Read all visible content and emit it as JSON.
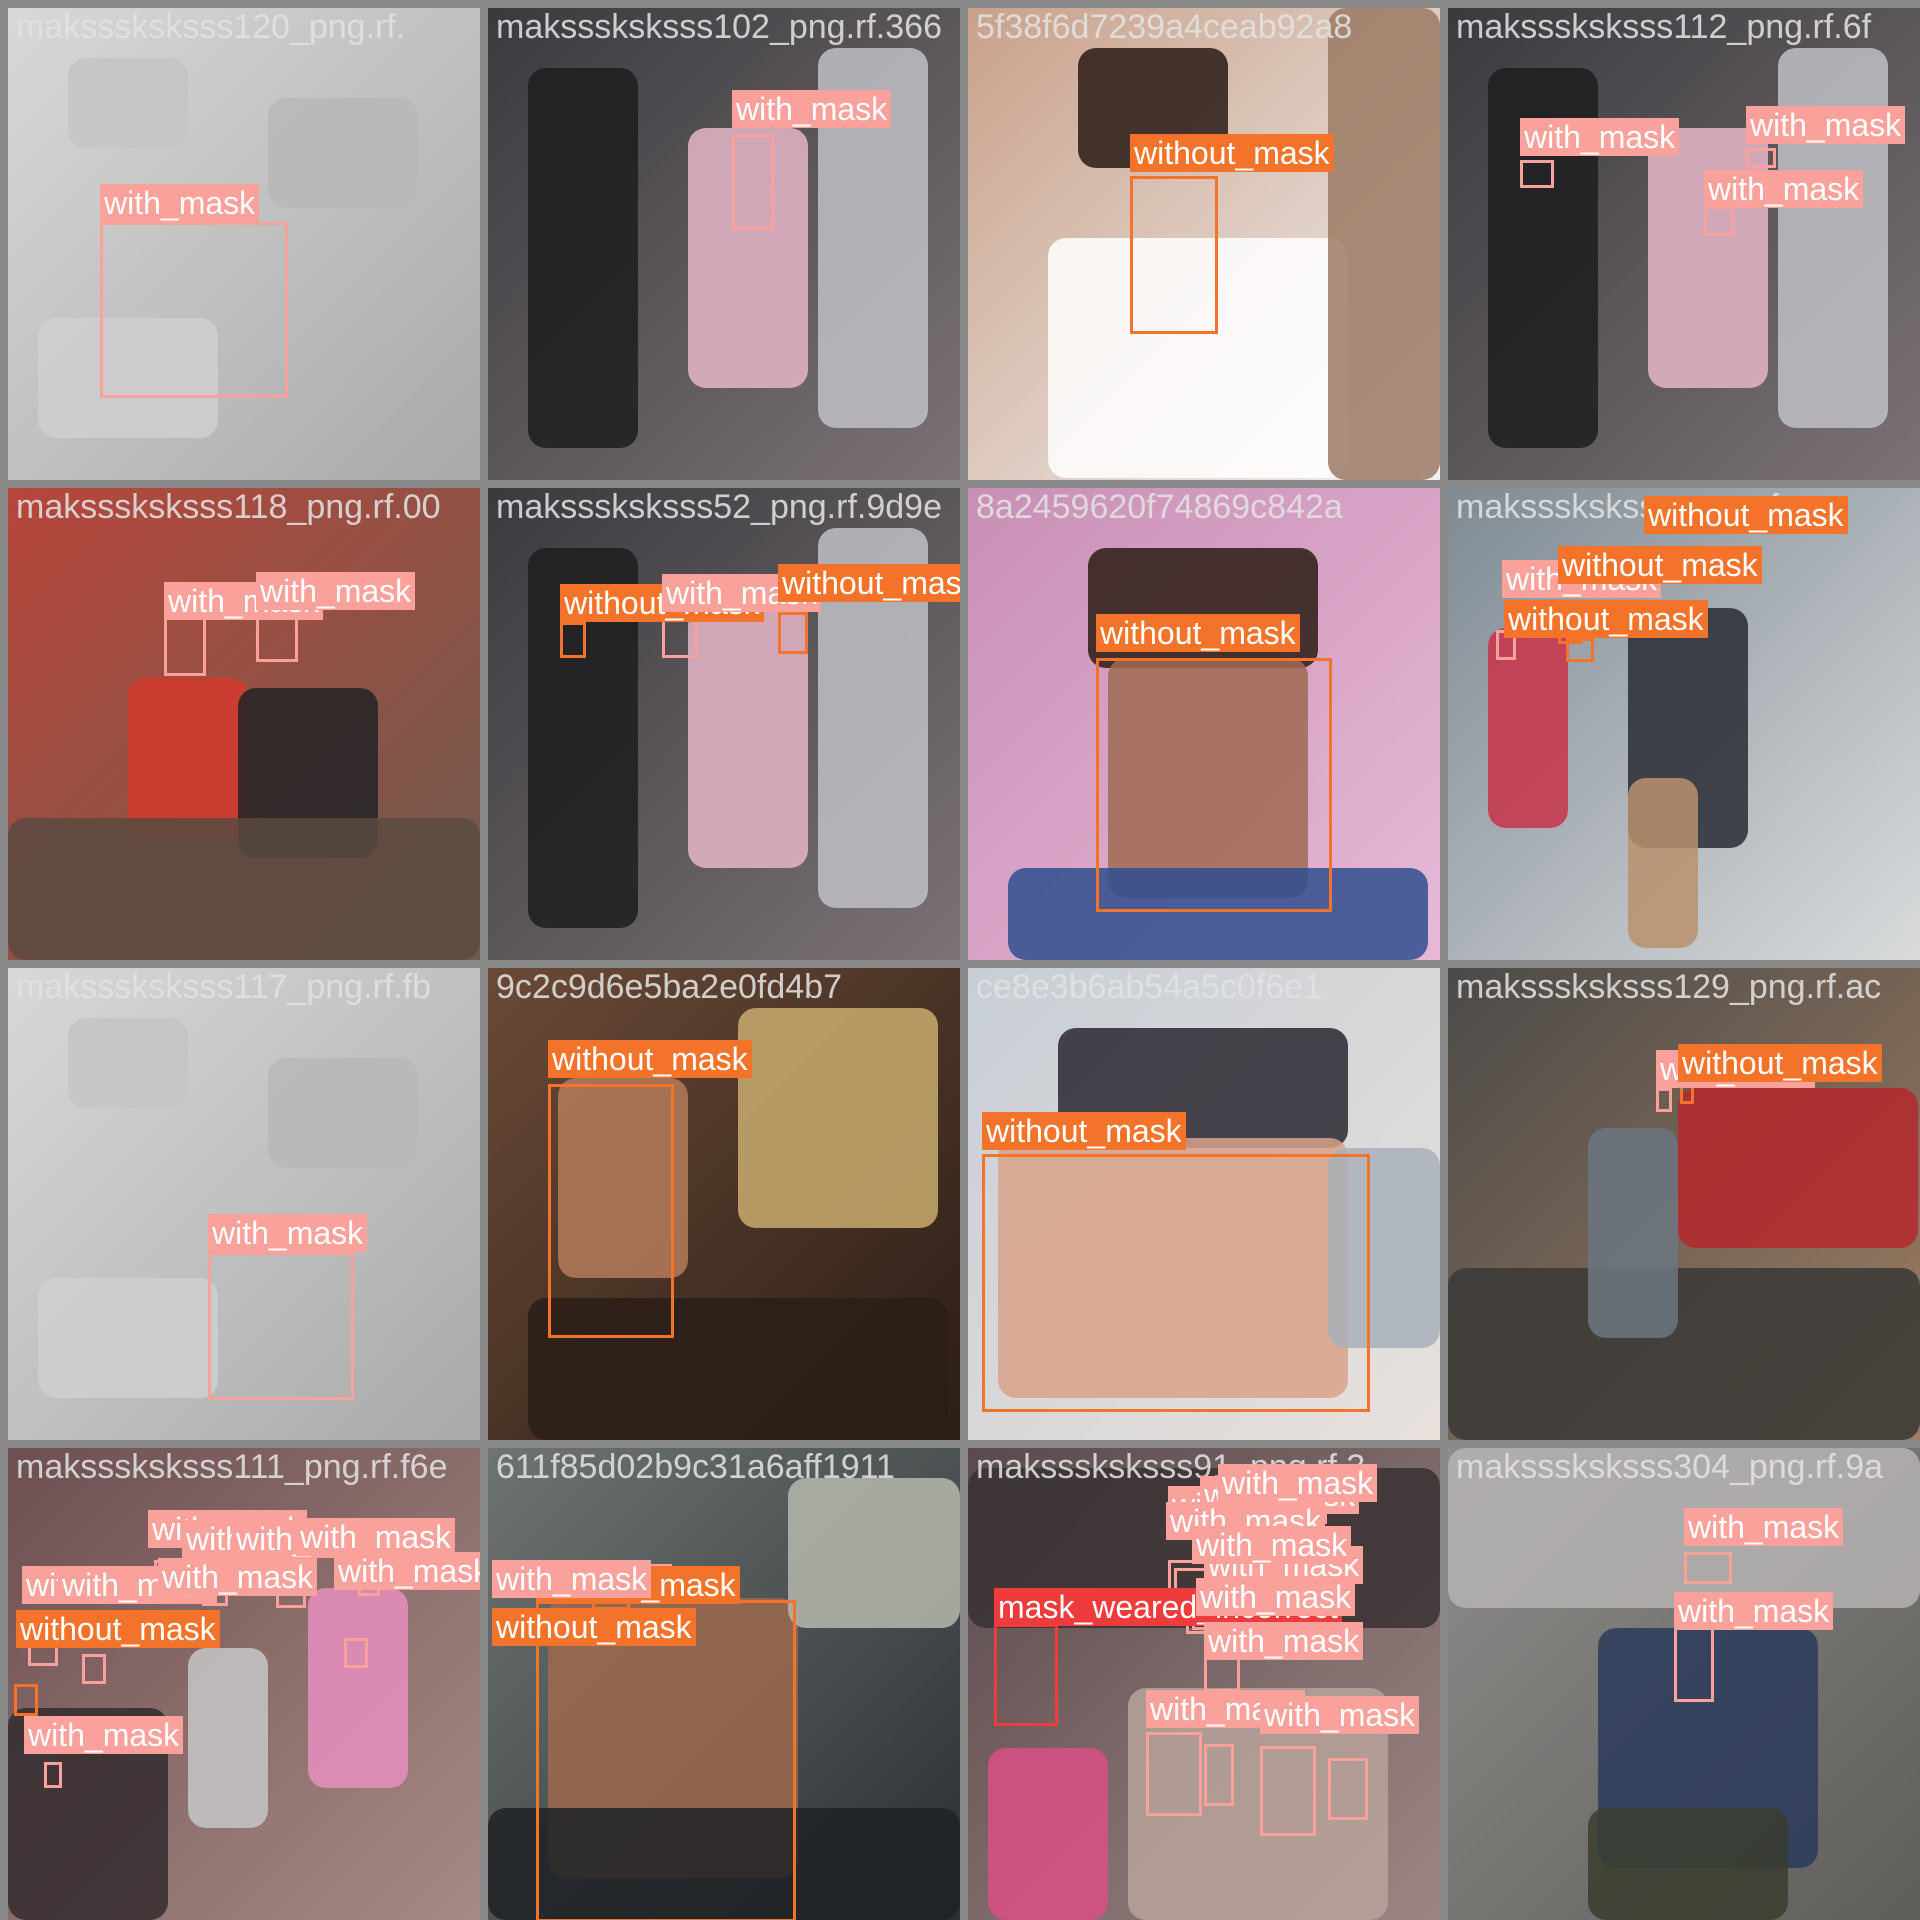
{
  "label_colors": {
    "with_mask": "#f9a19a",
    "without_mask": "#f4732b",
    "mask_weared_incorrect": "#ef3b3b"
  },
  "tiles": [
    {
      "filename": "maksssksksss120_png.rf.",
      "scene": "wall",
      "detections": [
        {
          "label": "with_mask",
          "cls": "with"
        }
      ]
    },
    {
      "filename": "maksssksksss102_png.rf.366",
      "scene": "street",
      "detections": [
        {
          "label": "with_mask",
          "cls": "with"
        }
      ]
    },
    {
      "filename": "5f38f6d7239a4ceab92a8",
      "scene": "brick",
      "detections": [
        {
          "label": "without_mask",
          "cls": "without"
        }
      ]
    },
    {
      "filename": "maksssksksss112_png.rf.6f",
      "scene": "street",
      "detections": [
        {
          "label": "with_mask",
          "cls": "with"
        },
        {
          "label": "with_mask",
          "cls": "with"
        },
        {
          "label": "with_mask",
          "cls": "with"
        }
      ]
    },
    {
      "filename": "maksssksksss118_png.rf.00",
      "scene": "waiting",
      "detections": [
        {
          "label": "with_mask",
          "cls": "with"
        },
        {
          "label": "with_mask",
          "cls": "with"
        }
      ]
    },
    {
      "filename": "maksssksksss52_png.rf.9d9e",
      "scene": "street",
      "detections": [
        {
          "label": "without_mask",
          "cls": "without"
        },
        {
          "label": "with_mask",
          "cls": "with"
        },
        {
          "label": "without_mask",
          "cls": "without"
        }
      ]
    },
    {
      "filename": "8a2459620f74869c842a",
      "scene": "pink",
      "detections": [
        {
          "label": "without_mask",
          "cls": "without"
        }
      ]
    },
    {
      "filename": "maksssksksss_png.rf.ce",
      "scene": "station",
      "detections": [
        {
          "label": "with_mask",
          "cls": "with"
        },
        {
          "label": "without_mask",
          "cls": "without"
        },
        {
          "label": "without_mask",
          "cls": "without"
        },
        {
          "label": "without_mask",
          "cls": "without"
        }
      ]
    },
    {
      "filename": "maksssksksss117_png.rf.fb",
      "scene": "wall",
      "detections": [
        {
          "label": "with_mask",
          "cls": "with"
        }
      ]
    },
    {
      "filename": "9c2c9d6e5ba2e0fd4b7",
      "scene": "warm",
      "detections": [
        {
          "label": "without_mask",
          "cls": "without"
        }
      ]
    },
    {
      "filename": "ce8e3b6ab54a5c0f6e1",
      "scene": "sky",
      "detections": [
        {
          "label": "without_mask",
          "cls": "without"
        }
      ]
    },
    {
      "filename": "maksssksksss129_png.rf.ac",
      "scene": "road",
      "detections": [
        {
          "label": "with_mask",
          "cls": "with"
        },
        {
          "label": "without_mask",
          "cls": "without"
        }
      ]
    },
    {
      "filename": "maksssksksss111_png.rf.f6e",
      "scene": "market",
      "detections": [
        {
          "label": "with_mask",
          "cls": "with"
        },
        {
          "label": "with_mask",
          "cls": "with"
        },
        {
          "label": "with_mask",
          "cls": "with"
        },
        {
          "label": "with_mask",
          "cls": "with"
        },
        {
          "label": "with_mask",
          "cls": "with"
        },
        {
          "label": "with_mask",
          "cls": "with"
        },
        {
          "label": "with_mask",
          "cls": "with"
        },
        {
          "label": "with_mask",
          "cls": "with"
        },
        {
          "label": "without_mask",
          "cls": "without"
        },
        {
          "label": "with_mask",
          "cls": "with"
        }
      ]
    },
    {
      "filename": "611f85d02b9c31a6aff1911",
      "scene": "dusk",
      "detections": [
        {
          "label": "without_mask",
          "cls": "without"
        },
        {
          "label": "with_mask",
          "cls": "with"
        },
        {
          "label": "without_mask",
          "cls": "without"
        }
      ]
    },
    {
      "filename": "maksssksksss91_png.rf.3",
      "scene": "crowd",
      "detections": [
        {
          "label": "mask_weared_incorrect",
          "cls": "weared"
        },
        {
          "label": "with_mask",
          "cls": "with"
        },
        {
          "label": "with_mask",
          "cls": "with"
        },
        {
          "label": "with_mask",
          "cls": "with"
        },
        {
          "label": "with_mask",
          "cls": "with"
        },
        {
          "label": "with_mask",
          "cls": "with"
        },
        {
          "label": "with_mask",
          "cls": "with"
        },
        {
          "label": "with_mask",
          "cls": "with"
        },
        {
          "label": "with_mask",
          "cls": "with"
        },
        {
          "label": "with_mask",
          "cls": "with"
        },
        {
          "label": "with_mask",
          "cls": "with"
        }
      ]
    },
    {
      "filename": "maksssksksss304_png.rf.9a",
      "scene": "fog",
      "detections": [
        {
          "label": "with_mask",
          "cls": "with"
        },
        {
          "label": "with_mask",
          "cls": "with"
        }
      ]
    }
  ]
}
